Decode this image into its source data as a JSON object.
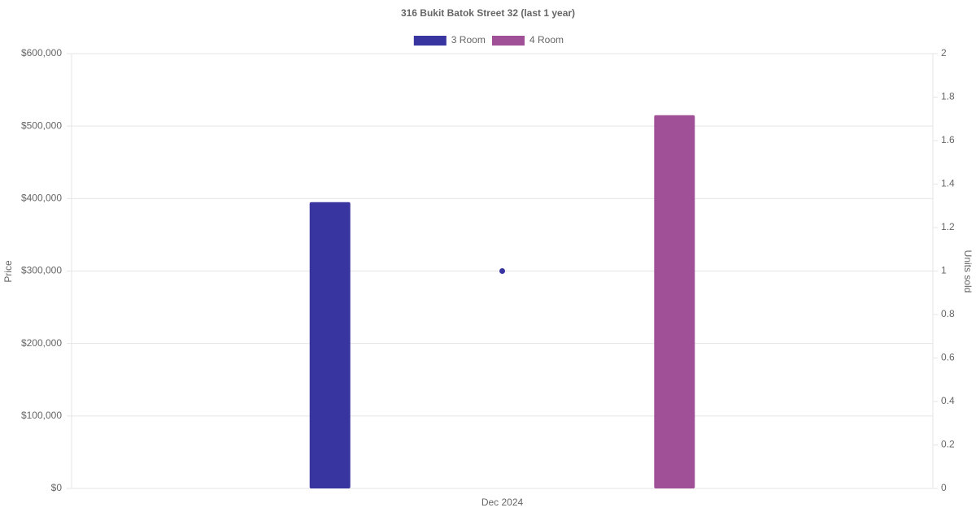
{
  "chart_data": {
    "type": "bar",
    "title": "316 Bukit Batok Street 32 (last 1 year)",
    "categories": [
      "Dec 2024"
    ],
    "series": [
      {
        "name": "3 Room",
        "color": "#3834a0",
        "values": [
          395000
        ]
      },
      {
        "name": "4 Room",
        "color": "#a05096",
        "values": [
          515000
        ]
      }
    ],
    "line_series": [
      {
        "color": "#3834a0",
        "values": [
          1
        ],
        "axis": "y2"
      }
    ],
    "y_label": "Price",
    "y2_label": "Units sold",
    "ylim": [
      0,
      600000
    ],
    "yticks": [
      {
        "value": 0,
        "label": "$0"
      },
      {
        "value": 100000,
        "label": "$100,000"
      },
      {
        "value": 200000,
        "label": "$200,000"
      },
      {
        "value": 300000,
        "label": "$300,000"
      },
      {
        "value": 400000,
        "label": "$400,000"
      },
      {
        "value": 500000,
        "label": "$500,000"
      },
      {
        "value": 600000,
        "label": "$600,000"
      }
    ],
    "y2lim": [
      0,
      2
    ],
    "y2ticks": [
      0,
      0.2,
      0.4,
      0.6,
      0.8,
      1,
      1.2,
      1.4,
      1.6,
      1.8,
      2
    ],
    "grid": true,
    "legend": "top"
  }
}
